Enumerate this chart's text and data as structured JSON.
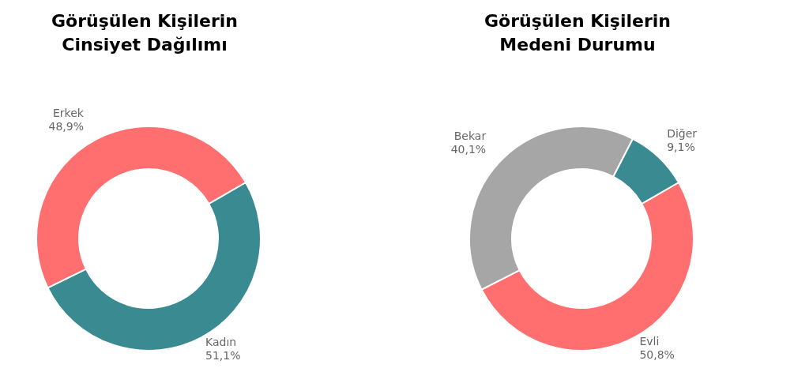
{
  "chart_data": [
    {
      "type": "donut",
      "title": "Görüşülen Kişilerin Cinsiyet Dağılımı",
      "categories": [
        "Kadın",
        "Erkek"
      ],
      "values": [
        51.1,
        48.9
      ],
      "colors": [
        "#3a8a91",
        "#ff6f6f"
      ],
      "value_labels": [
        "51,1%",
        "48,9%"
      ]
    },
    {
      "type": "donut",
      "title": "Görüşülen Kişilerin Medeni Durumu",
      "categories": [
        "Evli",
        "Bekar",
        "Diğer"
      ],
      "values": [
        50.8,
        40.1,
        9.1
      ],
      "colors": [
        "#ff6f6f",
        "#a6a6a6",
        "#3a8a91"
      ],
      "value_labels": [
        "50,8%",
        "40,1%",
        "9,1%"
      ]
    }
  ]
}
